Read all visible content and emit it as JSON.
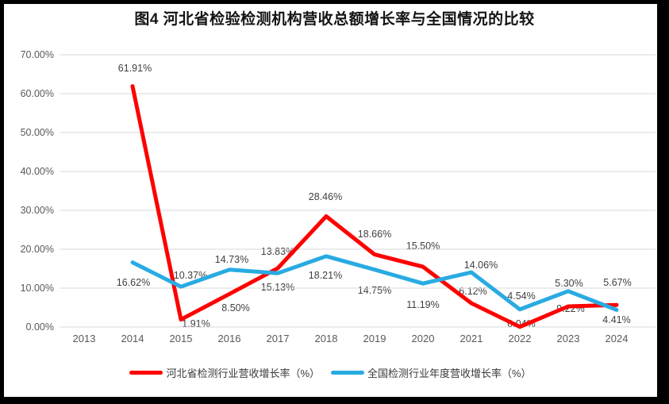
{
  "title": "图4 河北省检验检测机构营收总额增长率与全国情况的比较",
  "chart_data": {
    "type": "line",
    "categories": [
      "2013",
      "2014",
      "2015",
      "2016",
      "2017",
      "2018",
      "2019",
      "2020",
      "2021",
      "2022",
      "2023",
      "2024"
    ],
    "ylim": [
      0,
      70
    ],
    "grid": true,
    "legend_position": "bottom",
    "y_ticks": [
      {
        "value": 70,
        "label": "70.00%"
      },
      {
        "value": 60,
        "label": "60.00%"
      },
      {
        "value": 50,
        "label": "50.00%"
      },
      {
        "value": 40,
        "label": "40.00%"
      },
      {
        "value": 30,
        "label": "30.00%"
      },
      {
        "value": 20,
        "label": "20.00%"
      },
      {
        "value": 10,
        "label": "10.00%"
      },
      {
        "value": 0,
        "label": "0.00%"
      }
    ],
    "series": [
      {
        "name": "河北省检测行业营收增长率（%）",
        "color": "#FF0000",
        "values": [
          null,
          61.91,
          1.91,
          8.5,
          15.13,
          28.46,
          18.66,
          15.5,
          6.12,
          0.04,
          5.3,
          5.67
        ],
        "labels": [
          null,
          "61.91%",
          "1.91%",
          "8.50%",
          "15.13%",
          "28.46%",
          "18.66%",
          "15.50%",
          "6.12%",
          "0.04%",
          "5.30%",
          "5.67%"
        ],
        "label_dx": [
          null,
          3,
          19,
          8,
          0,
          -1,
          0,
          0,
          2,
          2,
          1,
          1
        ],
        "label_dy": [
          null,
          -23,
          5,
          18,
          24,
          -25,
          -26,
          -26,
          -15,
          -4,
          -29,
          -28
        ]
      },
      {
        "name": "全国检测行业年度营收增长率（%）",
        "color": "#29ABE2",
        "values": [
          null,
          16.62,
          10.37,
          14.73,
          13.83,
          18.21,
          14.75,
          11.19,
          14.06,
          4.54,
          9.22,
          4.41
        ],
        "labels": [
          null,
          "16.62%",
          "10.37%",
          "14.73%",
          "13.83%",
          "18.21%",
          "14.75%",
          "11.19%",
          "14.06%",
          "4.54%",
          "9.22%",
          "4.41%"
        ],
        "label_dx": [
          null,
          1,
          12,
          3,
          0,
          -1,
          0,
          0,
          12,
          2,
          3,
          0
        ],
        "label_dy": [
          null,
          25,
          -14,
          -13,
          -27,
          24,
          26,
          27,
          -9,
          -17,
          22,
          13
        ]
      }
    ]
  }
}
